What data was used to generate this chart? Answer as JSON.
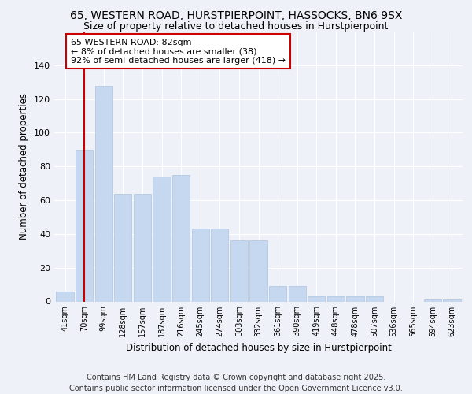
{
  "title1": "65, WESTERN ROAD, HURSTPIERPOINT, HASSOCKS, BN6 9SX",
  "title2": "Size of property relative to detached houses in Hurstpierpoint",
  "xlabel": "Distribution of detached houses by size in Hurstpierpoint",
  "ylabel": "Number of detached properties",
  "categories": [
    "41sqm",
    "70sqm",
    "99sqm",
    "128sqm",
    "157sqm",
    "187sqm",
    "216sqm",
    "245sqm",
    "274sqm",
    "303sqm",
    "332sqm",
    "361sqm",
    "390sqm",
    "419sqm",
    "448sqm",
    "478sqm",
    "507sqm",
    "536sqm",
    "565sqm",
    "594sqm",
    "623sqm"
  ],
  "values": [
    6,
    90,
    128,
    64,
    64,
    74,
    75,
    43,
    43,
    36,
    36,
    9,
    9,
    3,
    3,
    3,
    3,
    0,
    0,
    1,
    1
  ],
  "bar_color": "#c5d8f0",
  "bar_edge_color": "#adc4df",
  "vline_x": 1,
  "vline_color": "#cc0000",
  "annotation_box_text": "65 WESTERN ROAD: 82sqm\n← 8% of detached houses are smaller (38)\n92% of semi-detached houses are larger (418) →",
  "annotation_box_color": "#ffffff",
  "annotation_box_edge_color": "#cc0000",
  "ylim": [
    0,
    160
  ],
  "yticks": [
    0,
    20,
    40,
    60,
    80,
    100,
    120,
    140
  ],
  "background_color": "#eef2f8",
  "footer_text": "Contains HM Land Registry data © Crown copyright and database right 2025.\nContains public sector information licensed under the Open Government Licence v3.0.",
  "title1_fontsize": 10,
  "title2_fontsize": 9,
  "xlabel_fontsize": 8.5,
  "ylabel_fontsize": 8.5,
  "annotation_fontsize": 8,
  "footer_fontsize": 7
}
